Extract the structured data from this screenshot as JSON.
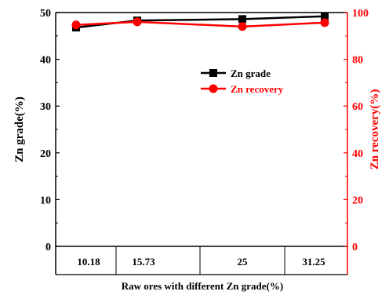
{
  "chart_data": {
    "type": "line",
    "categories": [
      "10.18",
      "15.73",
      "25",
      "31.25"
    ],
    "xlabel": "Raw ores with different Zn grade(%)",
    "ylabel_left": "Zn grade(%)",
    "ylabel_right": "Zn recovery(%)",
    "ylim_left": [
      0,
      50
    ],
    "ylim_right": [
      0,
      100
    ],
    "yticks_left": [
      "0",
      "10",
      "20",
      "30",
      "40",
      "50"
    ],
    "yticks_right": [
      "0",
      "20",
      "40",
      "60",
      "80",
      "100"
    ],
    "legend_position": "upper-right-inside",
    "series": [
      {
        "name": "Zn grade",
        "axis": "left",
        "color": "#000000",
        "marker": "square",
        "values": [
          46.8,
          48.3,
          48.6,
          49.2
        ]
      },
      {
        "name": "Zn recovery",
        "axis": "right",
        "color": "#ff0000",
        "marker": "circle",
        "values": [
          94.7,
          96.0,
          94.0,
          95.7
        ]
      }
    ],
    "right_axis_color": "#ff0000",
    "grid": false
  }
}
